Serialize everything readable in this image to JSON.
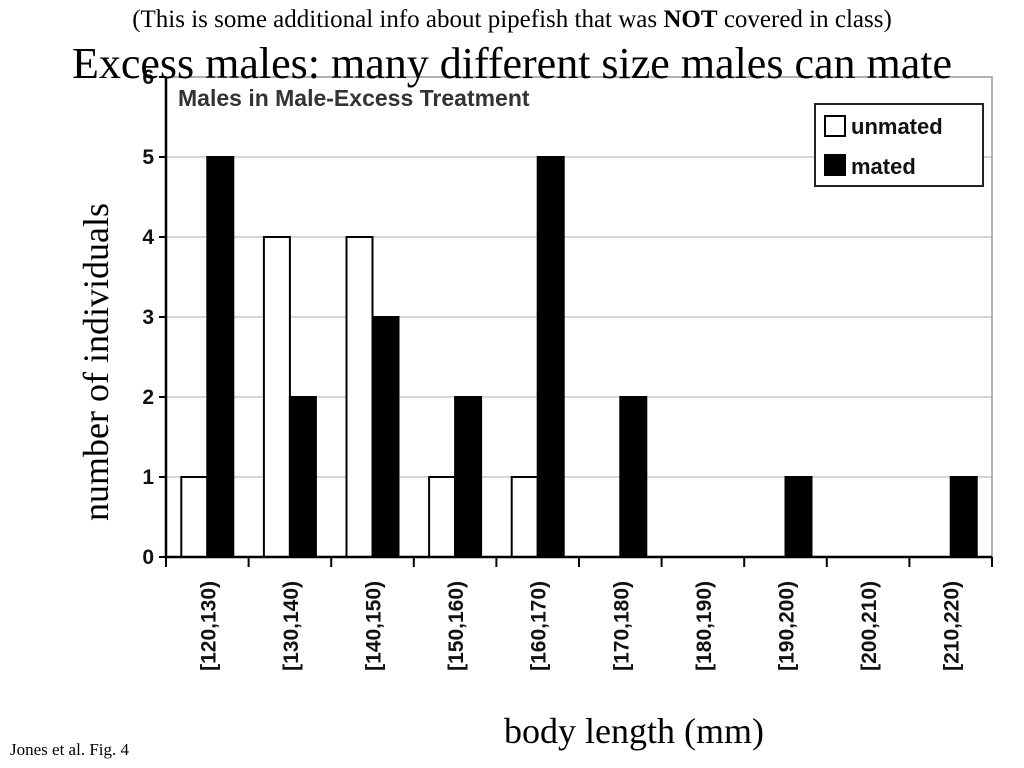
{
  "slide": {
    "note_prefix": "(This is some additional info about pipefish that was ",
    "note_emphasis": "NOT",
    "note_suffix": " covered in class)",
    "heading": "Excess males: many different size males can mate",
    "y_axis_label": "number of individuals",
    "x_axis_label": "body length (mm)",
    "citation": "Jones et al. Fig. 4"
  },
  "chart_data": {
    "type": "bar",
    "title": "Males in Male-Excess Treatment",
    "categories": [
      "[120,130)",
      "[130,140)",
      "[140,150)",
      "[150,160)",
      "[160,170)",
      "[170,180)",
      "[180,190)",
      "[190,200)",
      "[200,210)",
      "[210,220)"
    ],
    "series": [
      {
        "name": "unmated",
        "values": [
          1,
          4,
          4,
          1,
          1,
          0,
          0,
          0,
          0,
          0
        ],
        "fill": "#ffffff"
      },
      {
        "name": "mated",
        "values": [
          5,
          2,
          3,
          2,
          5,
          2,
          0,
          1,
          0,
          1
        ],
        "fill": "#000000"
      }
    ],
    "ylim": [
      0,
      6
    ],
    "yticks": [
      0,
      1,
      2,
      3,
      4,
      5,
      6
    ],
    "grid": true,
    "legend_position": "top-right"
  }
}
